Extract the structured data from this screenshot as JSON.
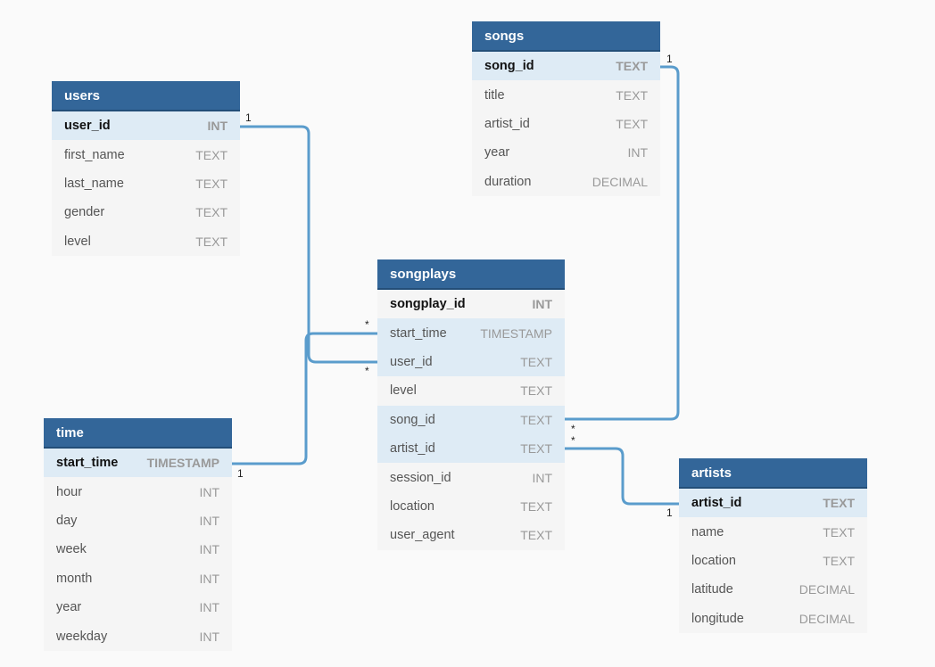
{
  "tables": {
    "songs": {
      "title": "songs",
      "rows": [
        {
          "name": "song_id",
          "type": "TEXT"
        },
        {
          "name": "title",
          "type": "TEXT"
        },
        {
          "name": "artist_id",
          "type": "TEXT"
        },
        {
          "name": "year",
          "type": "INT"
        },
        {
          "name": "duration",
          "type": "DECIMAL"
        }
      ]
    },
    "users": {
      "title": "users",
      "rows": [
        {
          "name": "user_id",
          "type": "INT"
        },
        {
          "name": "first_name",
          "type": "TEXT"
        },
        {
          "name": "last_name",
          "type": "TEXT"
        },
        {
          "name": "gender",
          "type": "TEXT"
        },
        {
          "name": "level",
          "type": "TEXT"
        }
      ]
    },
    "songplays": {
      "title": "songplays",
      "rows": [
        {
          "name": "songplay_id",
          "type": "INT"
        },
        {
          "name": "start_time",
          "type": "TIMESTAMP"
        },
        {
          "name": "user_id",
          "type": "TEXT"
        },
        {
          "name": "level",
          "type": "TEXT"
        },
        {
          "name": "song_id",
          "type": "TEXT"
        },
        {
          "name": "artist_id",
          "type": "TEXT"
        },
        {
          "name": "session_id",
          "type": "INT"
        },
        {
          "name": "location",
          "type": "TEXT"
        },
        {
          "name": "user_agent",
          "type": "TEXT"
        }
      ]
    },
    "time": {
      "title": "time",
      "rows": [
        {
          "name": "start_time",
          "type": "TIMESTAMP"
        },
        {
          "name": "hour",
          "type": "INT"
        },
        {
          "name": "day",
          "type": "INT"
        },
        {
          "name": "week",
          "type": "INT"
        },
        {
          "name": "month",
          "type": "INT"
        },
        {
          "name": "year",
          "type": "INT"
        },
        {
          "name": "weekday",
          "type": "INT"
        }
      ]
    },
    "artists": {
      "title": "artists",
      "rows": [
        {
          "name": "artist_id",
          "type": "TEXT"
        },
        {
          "name": "name",
          "type": "TEXT"
        },
        {
          "name": "location",
          "type": "TEXT"
        },
        {
          "name": "latitude",
          "type": "DECIMAL"
        },
        {
          "name": "longitude",
          "type": "DECIMAL"
        }
      ]
    }
  },
  "cardinality": {
    "one": "1",
    "many": "*"
  },
  "colors": {
    "header": "#336699",
    "highlight_row": "#deebf5",
    "link": "#5a9ccc"
  }
}
